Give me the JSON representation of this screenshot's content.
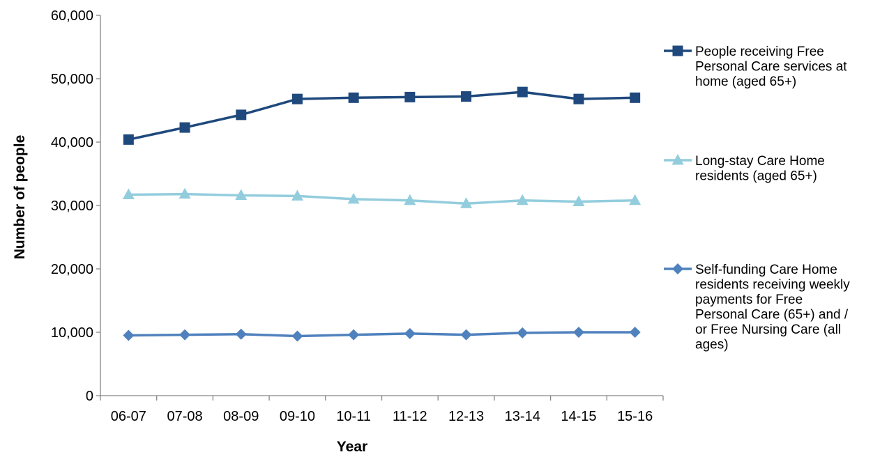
{
  "chart_data": {
    "type": "line",
    "title": "",
    "xlabel": "Year",
    "ylabel": "Number of people",
    "categories": [
      "06-07",
      "07-08",
      "08-09",
      "09-10",
      "10-11",
      "11-12",
      "12-13",
      "13-14",
      "14-15",
      "15-16"
    ],
    "ylim": [
      0,
      60000
    ],
    "yticks": [
      0,
      10000,
      20000,
      30000,
      40000,
      50000,
      60000
    ],
    "ytick_labels": [
      "0",
      "10,000",
      "20,000",
      "30,000",
      "40,000",
      "50,000",
      "60,000"
    ],
    "grid": false,
    "legend_position": "right",
    "series": [
      {
        "name": "People receiving Free Personal Care services at home (aged 65+)",
        "legend_lines": [
          "People receiving Free",
          "Personal Care services at",
          "home (aged 65+)"
        ],
        "color": "#1F497D",
        "marker": "square",
        "values": [
          40400,
          42300,
          44300,
          46800,
          47000,
          47100,
          47200,
          47900,
          46800,
          47000
        ]
      },
      {
        "name": "Long-stay Care Home residents (aged 65+)",
        "legend_lines": [
          "Long-stay Care Home",
          "residents (aged 65+)"
        ],
        "color": "#93CDDD",
        "marker": "triangle",
        "values": [
          31700,
          31800,
          31600,
          31500,
          31000,
          30800,
          30300,
          30800,
          30600,
          30800
        ]
      },
      {
        "name": "Self-funding Care Home residents receiving weekly payments for Free Personal Care (65+) and / or Free Nursing Care (all ages)",
        "legend_lines": [
          "Self-funding Care Home",
          "residents receiving weekly",
          "payments for Free",
          "Personal Care (65+) and /",
          "or Free Nursing Care (all",
          "ages)"
        ],
        "color": "#4F81BD",
        "marker": "diamond",
        "values": [
          9500,
          9600,
          9700,
          9400,
          9600,
          9800,
          9600,
          9900,
          10000,
          10000
        ]
      }
    ]
  }
}
